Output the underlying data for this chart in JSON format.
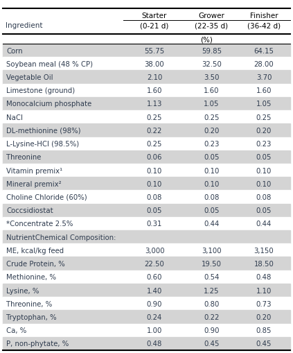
{
  "col_header_top": [
    "Starter",
    "Grower",
    "Finisher"
  ],
  "col_header_bot": [
    "(0-21 d)",
    "(22-35 d)",
    "(36-42 d)"
  ],
  "ingredient_label": "Ingredient",
  "pct_label": "(%)",
  "rows": [
    [
      "Corn",
      "55.75",
      "59.85",
      "64.15"
    ],
    [
      "Soybean meal (48 % CP)",
      "38.00",
      "32.50",
      "28.00"
    ],
    [
      "Vegetable Oil",
      "2.10",
      "3.50",
      "3.70"
    ],
    [
      "Limestone (ground)",
      "1.60",
      "1.60",
      "1.60"
    ],
    [
      "Monocalcium phosphate",
      "1.13",
      "1.05",
      "1.05"
    ],
    [
      "NaCl",
      "0.25",
      "0.25",
      "0.25"
    ],
    [
      "DL-methionine (98%)",
      "0.22",
      "0.20",
      "0.20"
    ],
    [
      "L-Lysine-HCl (98.5%)",
      "0.25",
      "0.23",
      "0.23"
    ],
    [
      "Threonine",
      "0.06",
      "0.05",
      "0.05"
    ],
    [
      "Vitamin premix¹",
      "0.10",
      "0.10",
      "0.10"
    ],
    [
      "Mineral premix²",
      "0.10",
      "0.10",
      "0.10"
    ],
    [
      "Choline Chloride (60%)",
      "0.08",
      "0.08",
      "0.08"
    ],
    [
      "Coccsidiostat",
      "0.05",
      "0.05",
      "0.05"
    ],
    [
      "*Concentrate 2.5%",
      "0.31",
      "0.44",
      "0.44"
    ],
    [
      "NutrientChemical Composition:",
      "",
      "",
      ""
    ],
    [
      "ME, kcal/kg feed",
      "3,000",
      "3,100",
      "3,150"
    ],
    [
      "Crude Protein, %",
      "22.50",
      "19.50",
      "18.50"
    ],
    [
      "Methionine, %",
      "0.60",
      "0.54",
      "0.48"
    ],
    [
      "Lysine, %",
      "1.40",
      "1.25",
      "1.10"
    ],
    [
      "Threonine, %",
      "0.90",
      "0.80",
      "0.73"
    ],
    [
      "Tryptophan, %",
      "0.24",
      "0.22",
      "0.20"
    ],
    [
      "Ca, %",
      "1.00",
      "0.90",
      "0.85"
    ],
    [
      "P, non-phytate, %",
      "0.48",
      "0.45",
      "0.45"
    ]
  ],
  "shaded_rows": [
    0,
    2,
    4,
    6,
    8,
    10,
    12,
    14,
    16,
    18,
    20,
    22
  ],
  "shade_color": "#d4d4d4",
  "white_color": "#ffffff",
  "text_color": "#2e3b4e",
  "figsize": [
    4.23,
    5.1
  ],
  "dpi": 100
}
